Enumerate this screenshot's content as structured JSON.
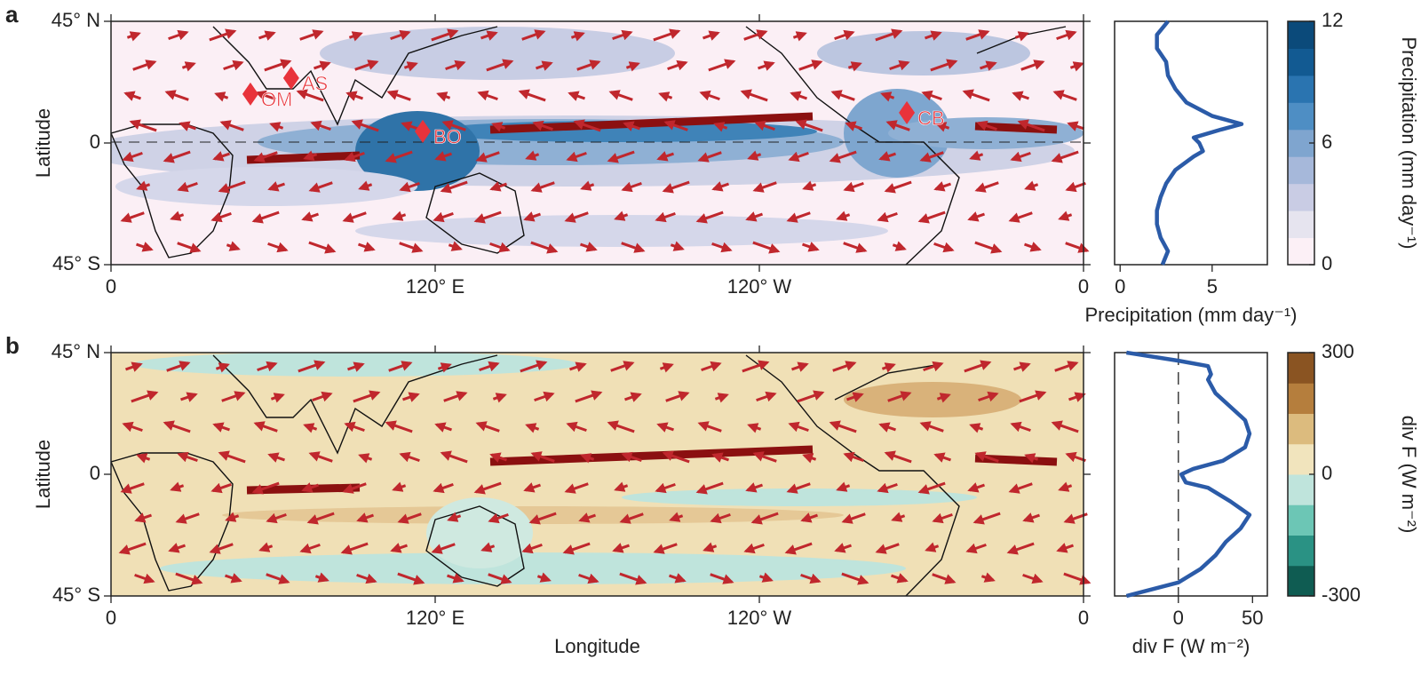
{
  "chart_data": [
    {
      "type": "line",
      "x_label": "Precipitation (mm day⁻¹)",
      "y": [
        45,
        40,
        35,
        30,
        25,
        20,
        15,
        10,
        7,
        5,
        2,
        0,
        -3,
        -5,
        -10,
        -15,
        -20,
        -25,
        -30,
        -35,
        -40,
        -45
      ],
      "series": [
        {
          "color": "#2b5ba8",
          "values": [
            2.6,
            2.0,
            2.0,
            2.5,
            2.6,
            3.0,
            3.6,
            5.0,
            6.6,
            5.5,
            4.0,
            4.3,
            4.5,
            4.0,
            3.0,
            2.5,
            2.2,
            2.0,
            2.0,
            2.2,
            2.6,
            2.3
          ]
        }
      ],
      "xlim": [
        -0.3,
        8
      ],
      "xticks": [
        0,
        5
      ],
      "ylim": [
        -45,
        45
      ]
    },
    {
      "type": "line",
      "x_label": "div F (W m⁻²)",
      "zero_line": true,
      "y": [
        45,
        42,
        40,
        37,
        35,
        30,
        25,
        20,
        15,
        10,
        5,
        2,
        0,
        -3,
        -5,
        -10,
        -15,
        -20,
        -25,
        -30,
        -35,
        -40,
        -45
      ],
      "series": [
        {
          "color": "#2b5ba8",
          "values": [
            -35,
            0,
            20,
            22,
            20,
            25,
            35,
            45,
            48,
            45,
            30,
            10,
            2,
            5,
            20,
            35,
            48,
            42,
            32,
            25,
            15,
            0,
            -35
          ]
        }
      ],
      "xlim": [
        -43,
        60
      ],
      "xticks": [
        0,
        50
      ],
      "ylim": [
        -45,
        45
      ]
    }
  ],
  "maps": [
    {
      "label": "a",
      "y_label": "Latitude",
      "xlim": [
        0,
        360
      ],
      "ylim": [
        -45,
        45
      ],
      "xticks": [
        0,
        {
          "value": 120,
          "label": "120° E"
        },
        {
          "value": 240,
          "label": "120° W"
        },
        {
          "value": 360,
          "label": "0"
        }
      ],
      "yticks": [
        {
          "value": 45,
          "label": "45° N"
        },
        0,
        {
          "value": -45,
          "label": "45° S"
        }
      ],
      "markers": [
        {
          "label": "OM",
          "lon": 51.6,
          "lat": 18.1
        },
        {
          "label": "AS",
          "lon": 66.7,
          "lat": 24
        },
        {
          "label": "BO",
          "lon": 115.4,
          "lat": 4.3
        },
        {
          "label": "CB",
          "lon": 294.6,
          "lat": 11.2
        }
      ],
      "colorbar": {
        "label": "Precipitation (mm day⁻¹)",
        "lim": [
          0,
          12
        ],
        "ticks": [
          0,
          6,
          12
        ],
        "colors": [
          "#fcf0f6",
          "#e6e4ef",
          "#c9cce4",
          "#a6b8da",
          "#7fa5cf",
          "#4e8ec4",
          "#2a74b0",
          "#125a92",
          "#0b4a7a"
        ]
      }
    },
    {
      "label": "b",
      "y_label": "Latitude",
      "x_label": "Longitude",
      "xlim": [
        0,
        360
      ],
      "ylim": [
        -45,
        45
      ],
      "xticks": [
        0,
        {
          "value": 120,
          "label": "120° E"
        },
        {
          "value": 240,
          "label": "120° W"
        },
        {
          "value": 360,
          "label": "0"
        }
      ],
      "yticks": [
        {
          "value": 45,
          "label": "45° N"
        },
        0,
        {
          "value": -45,
          "label": "45° S"
        }
      ],
      "colorbar": {
        "label": "div F (W m⁻²)",
        "lim": [
          -300,
          300
        ],
        "ticks": [
          -300,
          0,
          300
        ],
        "colors": [
          "#0f5c52",
          "#2a9284",
          "#6cc6b5",
          "#bfe4dc",
          "#f1e4bd",
          "#dcbb7e",
          "#b57e3d",
          "#8a5422"
        ]
      }
    }
  ]
}
